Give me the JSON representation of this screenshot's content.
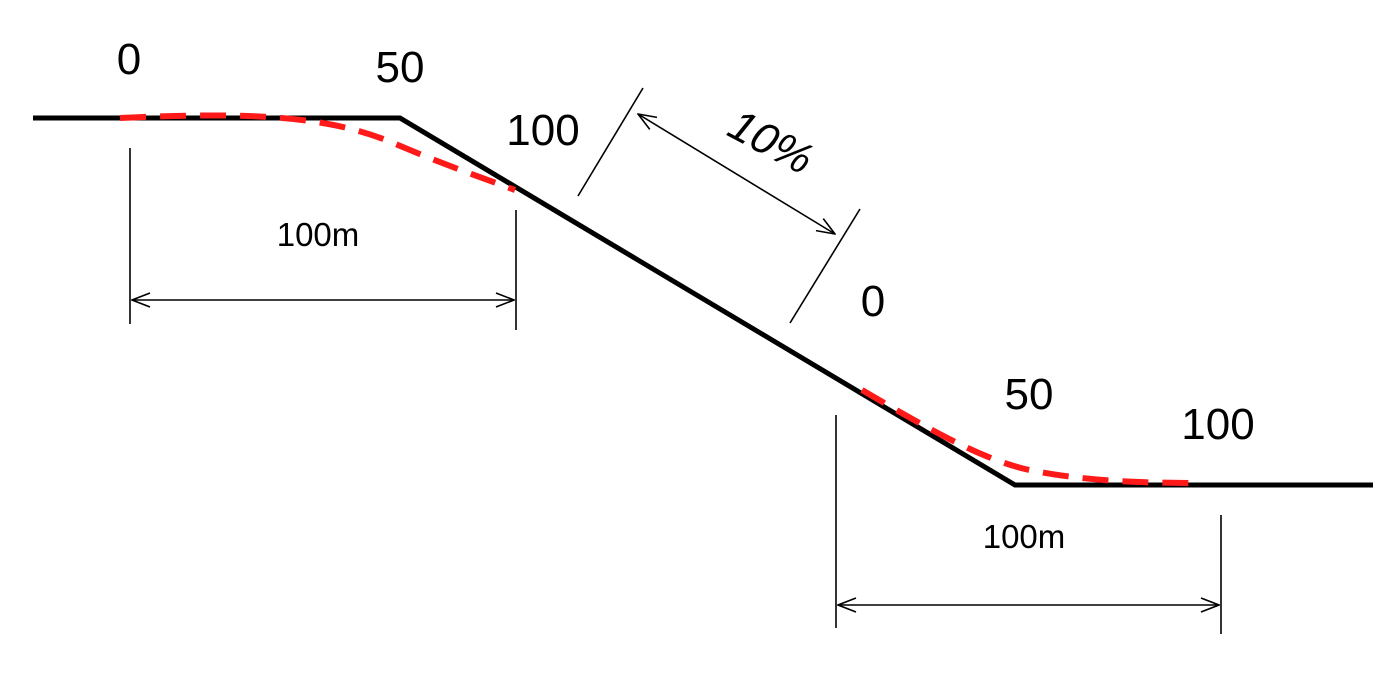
{
  "labels": {
    "upper_transition": {
      "start": "0",
      "mid": "50",
      "end": "100"
    },
    "lower_transition": {
      "start": "0",
      "mid": "50",
      "end": "100"
    },
    "slope_grade": "10%",
    "upper_distance": "100m",
    "lower_distance": "100m"
  },
  "colors": {
    "road_profile": "#000000",
    "vertical_curve": "#ff1a1a",
    "dimension": "#000000"
  }
}
